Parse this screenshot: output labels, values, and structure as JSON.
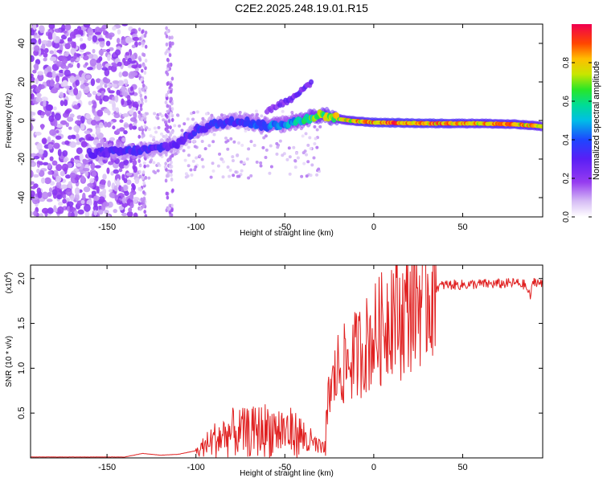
{
  "figure": {
    "title": "C2E2.2025.248.19.01.R15",
    "colorbar_label": "Normalized spectral amplitude",
    "colorbar_ticks": [
      "0.0",
      "0.2",
      "0.4",
      "0.6",
      "0.8"
    ]
  },
  "colors": {
    "snr_line": "#e02020",
    "axes": "#000000"
  },
  "chart_data": [
    {
      "type": "heatmap",
      "title": "C2E2.2025.248.19.01.R15",
      "xlabel": "Height of straight line (km)",
      "ylabel": "Frequency (Hz)",
      "xlim": [
        -193,
        95
      ],
      "ylim": [
        -50,
        50
      ],
      "xticks": [
        -150,
        -100,
        -50,
        0,
        50
      ],
      "yticks": [
        -40,
        -20,
        0,
        20,
        40
      ],
      "colorbar": {
        "label": "Normalized spectral amplitude",
        "range": [
          0,
          1
        ],
        "ticks": [
          0.0,
          0.2,
          0.4,
          0.6,
          0.8
        ]
      },
      "ridge": [
        {
          "x": -160,
          "y": -17,
          "amp": 0.3
        },
        {
          "x": -140,
          "y": -16,
          "amp": 0.35
        },
        {
          "x": -125,
          "y": -15,
          "amp": 0.35
        },
        {
          "x": -110,
          "y": -12,
          "amp": 0.3
        },
        {
          "x": -100,
          "y": -5,
          "amp": 0.35
        },
        {
          "x": -90,
          "y": -2,
          "amp": 0.4
        },
        {
          "x": -75,
          "y": 0,
          "amp": 0.4
        },
        {
          "x": -60,
          "y": -3,
          "amp": 0.45
        },
        {
          "x": -45,
          "y": -1,
          "amp": 0.55
        },
        {
          "x": -30,
          "y": 3,
          "amp": 0.75
        },
        {
          "x": -15,
          "y": 0,
          "amp": 0.85
        },
        {
          "x": 0,
          "y": -1,
          "amp": 0.95
        },
        {
          "x": 30,
          "y": -1.5,
          "amp": 0.95
        },
        {
          "x": 60,
          "y": -1.5,
          "amp": 0.9
        },
        {
          "x": 80,
          "y": -2,
          "amp": 0.9
        },
        {
          "x": 95,
          "y": -3,
          "amp": 0.85
        }
      ],
      "branch": [
        {
          "x": -60,
          "y": 5,
          "amp": 0.25
        },
        {
          "x": -45,
          "y": 12,
          "amp": 0.3
        },
        {
          "x": -35,
          "y": 20,
          "amp": 0.3
        }
      ]
    },
    {
      "type": "line",
      "xlabel": "Height of straight line (km)",
      "ylabel": "SNR (10 * v/v)",
      "y_scale_note": "(x10",
      "y_scale_exp": "4",
      "y_scale_close": ")",
      "xlim": [
        -193,
        95
      ],
      "ylim": [
        0,
        2.15
      ],
      "xticks": [
        -150,
        -100,
        -50,
        0,
        50
      ],
      "yticks": [
        0.5,
        1.0,
        1.5,
        2.0
      ],
      "series": [
        {
          "name": "SNR",
          "color": "#e02020",
          "x": [
            -193,
            -140,
            -130,
            -120,
            -110,
            -100,
            -90,
            -80,
            -70,
            -60,
            -50,
            -40,
            -35,
            -28,
            -25,
            -20,
            -15,
            -10,
            -5,
            0,
            5,
            10,
            15,
            20,
            25,
            30,
            35,
            40,
            50,
            60,
            70,
            80,
            85,
            88,
            90,
            95
          ],
          "y": [
            0.01,
            0.01,
            0.05,
            0.03,
            0.04,
            0.08,
            0.25,
            0.35,
            0.35,
            0.4,
            0.38,
            0.3,
            0.2,
            0.1,
            0.7,
            1.0,
            1.05,
            1.15,
            1.25,
            1.35,
            1.45,
            1.7,
            1.55,
            1.7,
            1.8,
            1.85,
            1.9,
            1.93,
            1.93,
            1.94,
            1.94,
            1.95,
            1.93,
            1.8,
            1.98,
            1.93
          ]
        }
      ]
    }
  ]
}
